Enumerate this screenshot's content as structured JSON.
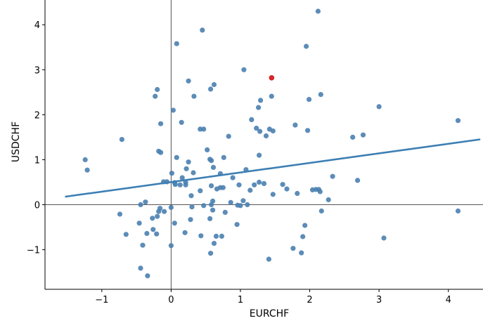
{
  "chart_data": {
    "type": "scatter",
    "title": "",
    "xlabel": "EURCHF",
    "ylabel": "USDCHF",
    "xlim": [
      -1.82,
      4.5
    ],
    "ylim": [
      -1.88,
      4.55
    ],
    "xticks": [
      -1,
      0,
      1,
      2,
      3,
      4
    ],
    "yticks": [
      -1,
      0,
      1,
      2,
      3,
      4
    ],
    "xtick_labels": [
      "−1",
      "0",
      "1",
      "2",
      "3",
      "4"
    ],
    "ytick_labels": [
      "−1",
      "0",
      "1",
      "2",
      "3",
      "4"
    ],
    "grid": false,
    "reference_lines": {
      "x": 0,
      "y": 0
    },
    "colors": {
      "points": "#4a7fb0",
      "highlight": "#d62728",
      "fit_line": "#3d7fb4",
      "reference": "#555555"
    },
    "regression_line": {
      "x": [
        -1.52,
        4.45
      ],
      "y": [
        0.18,
        1.45
      ]
    },
    "highlight_point": {
      "x": 1.45,
      "y": 2.82
    },
    "points": [
      [
        2.12,
        4.3
      ],
      [
        0.45,
        3.88
      ],
      [
        0.08,
        3.58
      ],
      [
        1.95,
        3.52
      ],
      [
        1.05,
        3.0
      ],
      [
        0.25,
        2.75
      ],
      [
        0.62,
        2.67
      ],
      [
        -0.2,
        2.56
      ],
      [
        0.57,
        2.57
      ],
      [
        2.16,
        2.45
      ],
      [
        -0.23,
        2.41
      ],
      [
        0.33,
        2.41
      ],
      [
        1.45,
        2.41
      ],
      [
        1.99,
        2.34
      ],
      [
        1.29,
        2.32
      ],
      [
        1.26,
        2.16
      ],
      [
        3.0,
        2.18
      ],
      [
        0.03,
        2.1
      ],
      [
        1.16,
        1.89
      ],
      [
        4.14,
        1.87
      ],
      [
        0.15,
        1.83
      ],
      [
        -0.15,
        1.8
      ],
      [
        1.79,
        1.77
      ],
      [
        1.23,
        1.7
      ],
      [
        1.42,
        1.68
      ],
      [
        0.42,
        1.68
      ],
      [
        0.47,
        1.68
      ],
      [
        1.47,
        1.64
      ],
      [
        1.97,
        1.65
      ],
      [
        1.28,
        1.63
      ],
      [
        2.77,
        1.55
      ],
      [
        2.62,
        1.5
      ],
      [
        1.37,
        1.53
      ],
      [
        0.83,
        1.52
      ],
      [
        -0.71,
        1.45
      ],
      [
        0.52,
        1.22
      ],
      [
        -0.18,
        1.19
      ],
      [
        -0.15,
        1.16
      ],
      [
        1.27,
        1.1
      ],
      [
        0.08,
        1.05
      ],
      [
        0.76,
        1.05
      ],
      [
        -1.24,
        1.0
      ],
      [
        0.56,
        1.01
      ],
      [
        0.58,
        0.98
      ],
      [
        0.25,
        0.95
      ],
      [
        0.61,
        0.83
      ],
      [
        0.22,
        0.8
      ],
      [
        1.08,
        0.78
      ],
      [
        -1.21,
        0.77
      ],
      [
        0.01,
        0.7
      ],
      [
        0.32,
        0.71
      ],
      [
        0.71,
        0.69
      ],
      [
        2.33,
        0.63
      ],
      [
        0.16,
        0.6
      ],
      [
        0.89,
        0.6
      ],
      [
        2.69,
        0.54
      ],
      [
        -0.11,
        0.51
      ],
      [
        -0.06,
        0.51
      ],
      [
        0.05,
        0.49
      ],
      [
        0.21,
        0.5
      ],
      [
        1.27,
        0.5
      ],
      [
        1.34,
        0.47
      ],
      [
        0.06,
        0.45
      ],
      [
        0.13,
        0.44
      ],
      [
        0.21,
        0.44
      ],
      [
        0.58,
        0.42
      ],
      [
        0.98,
        0.44
      ],
      [
        1.2,
        0.44
      ],
      [
        1.61,
        0.45
      ],
      [
        0.71,
        0.38
      ],
      [
        0.75,
        0.38
      ],
      [
        0.66,
        0.35
      ],
      [
        1.67,
        0.35
      ],
      [
        2.04,
        0.33
      ],
      [
        2.09,
        0.34
      ],
      [
        2.13,
        0.34
      ],
      [
        2.15,
        0.29
      ],
      [
        0.42,
        0.31
      ],
      [
        1.14,
        0.32
      ],
      [
        1.47,
        0.23
      ],
      [
        1.82,
        0.25
      ],
      [
        0.29,
        0.2
      ],
      [
        2.27,
        0.11
      ],
      [
        0.6,
        0.08
      ],
      [
        0.86,
        0.05
      ],
      [
        1.04,
        0.09
      ],
      [
        -0.37,
        0.06
      ],
      [
        1.1,
        0.0
      ],
      [
        0.58,
        0.0
      ],
      [
        -0.44,
        0.0
      ],
      [
        0.47,
        -0.02
      ],
      [
        0.96,
        -0.01
      ],
      [
        1.0,
        -0.02
      ],
      [
        -0.16,
        -0.08
      ],
      [
        0.0,
        -0.06
      ],
      [
        0.3,
        -0.05
      ],
      [
        -0.18,
        -0.15
      ],
      [
        0.6,
        -0.12
      ],
      [
        -0.1,
        -0.15
      ],
      [
        0.78,
        -0.17
      ],
      [
        2.17,
        -0.14
      ],
      [
        4.14,
        -0.14
      ],
      [
        -0.74,
        -0.21
      ],
      [
        -0.2,
        -0.26
      ],
      [
        -0.27,
        -0.3
      ],
      [
        0.56,
        -0.31
      ],
      [
        0.28,
        -0.33
      ],
      [
        0.05,
        -0.41
      ],
      [
        -0.46,
        -0.41
      ],
      [
        0.95,
        -0.44
      ],
      [
        1.93,
        -0.46
      ],
      [
        -0.26,
        -0.55
      ],
      [
        -0.65,
        -0.66
      ],
      [
        -0.35,
        -0.64
      ],
      [
        -0.21,
        -0.65
      ],
      [
        0.2,
        -0.62
      ],
      [
        0.43,
        -0.69
      ],
      [
        0.65,
        -0.7
      ],
      [
        0.73,
        -0.7
      ],
      [
        1.9,
        -0.71
      ],
      [
        3.07,
        -0.74
      ],
      [
        0.62,
        -0.86
      ],
      [
        -0.41,
        -0.9
      ],
      [
        0.0,
        -0.91
      ],
      [
        1.76,
        -0.97
      ],
      [
        0.57,
        -1.08
      ],
      [
        1.88,
        -1.07
      ],
      [
        1.41,
        -1.21
      ],
      [
        -0.44,
        -1.41
      ],
      [
        -0.34,
        -1.58
      ]
    ]
  }
}
